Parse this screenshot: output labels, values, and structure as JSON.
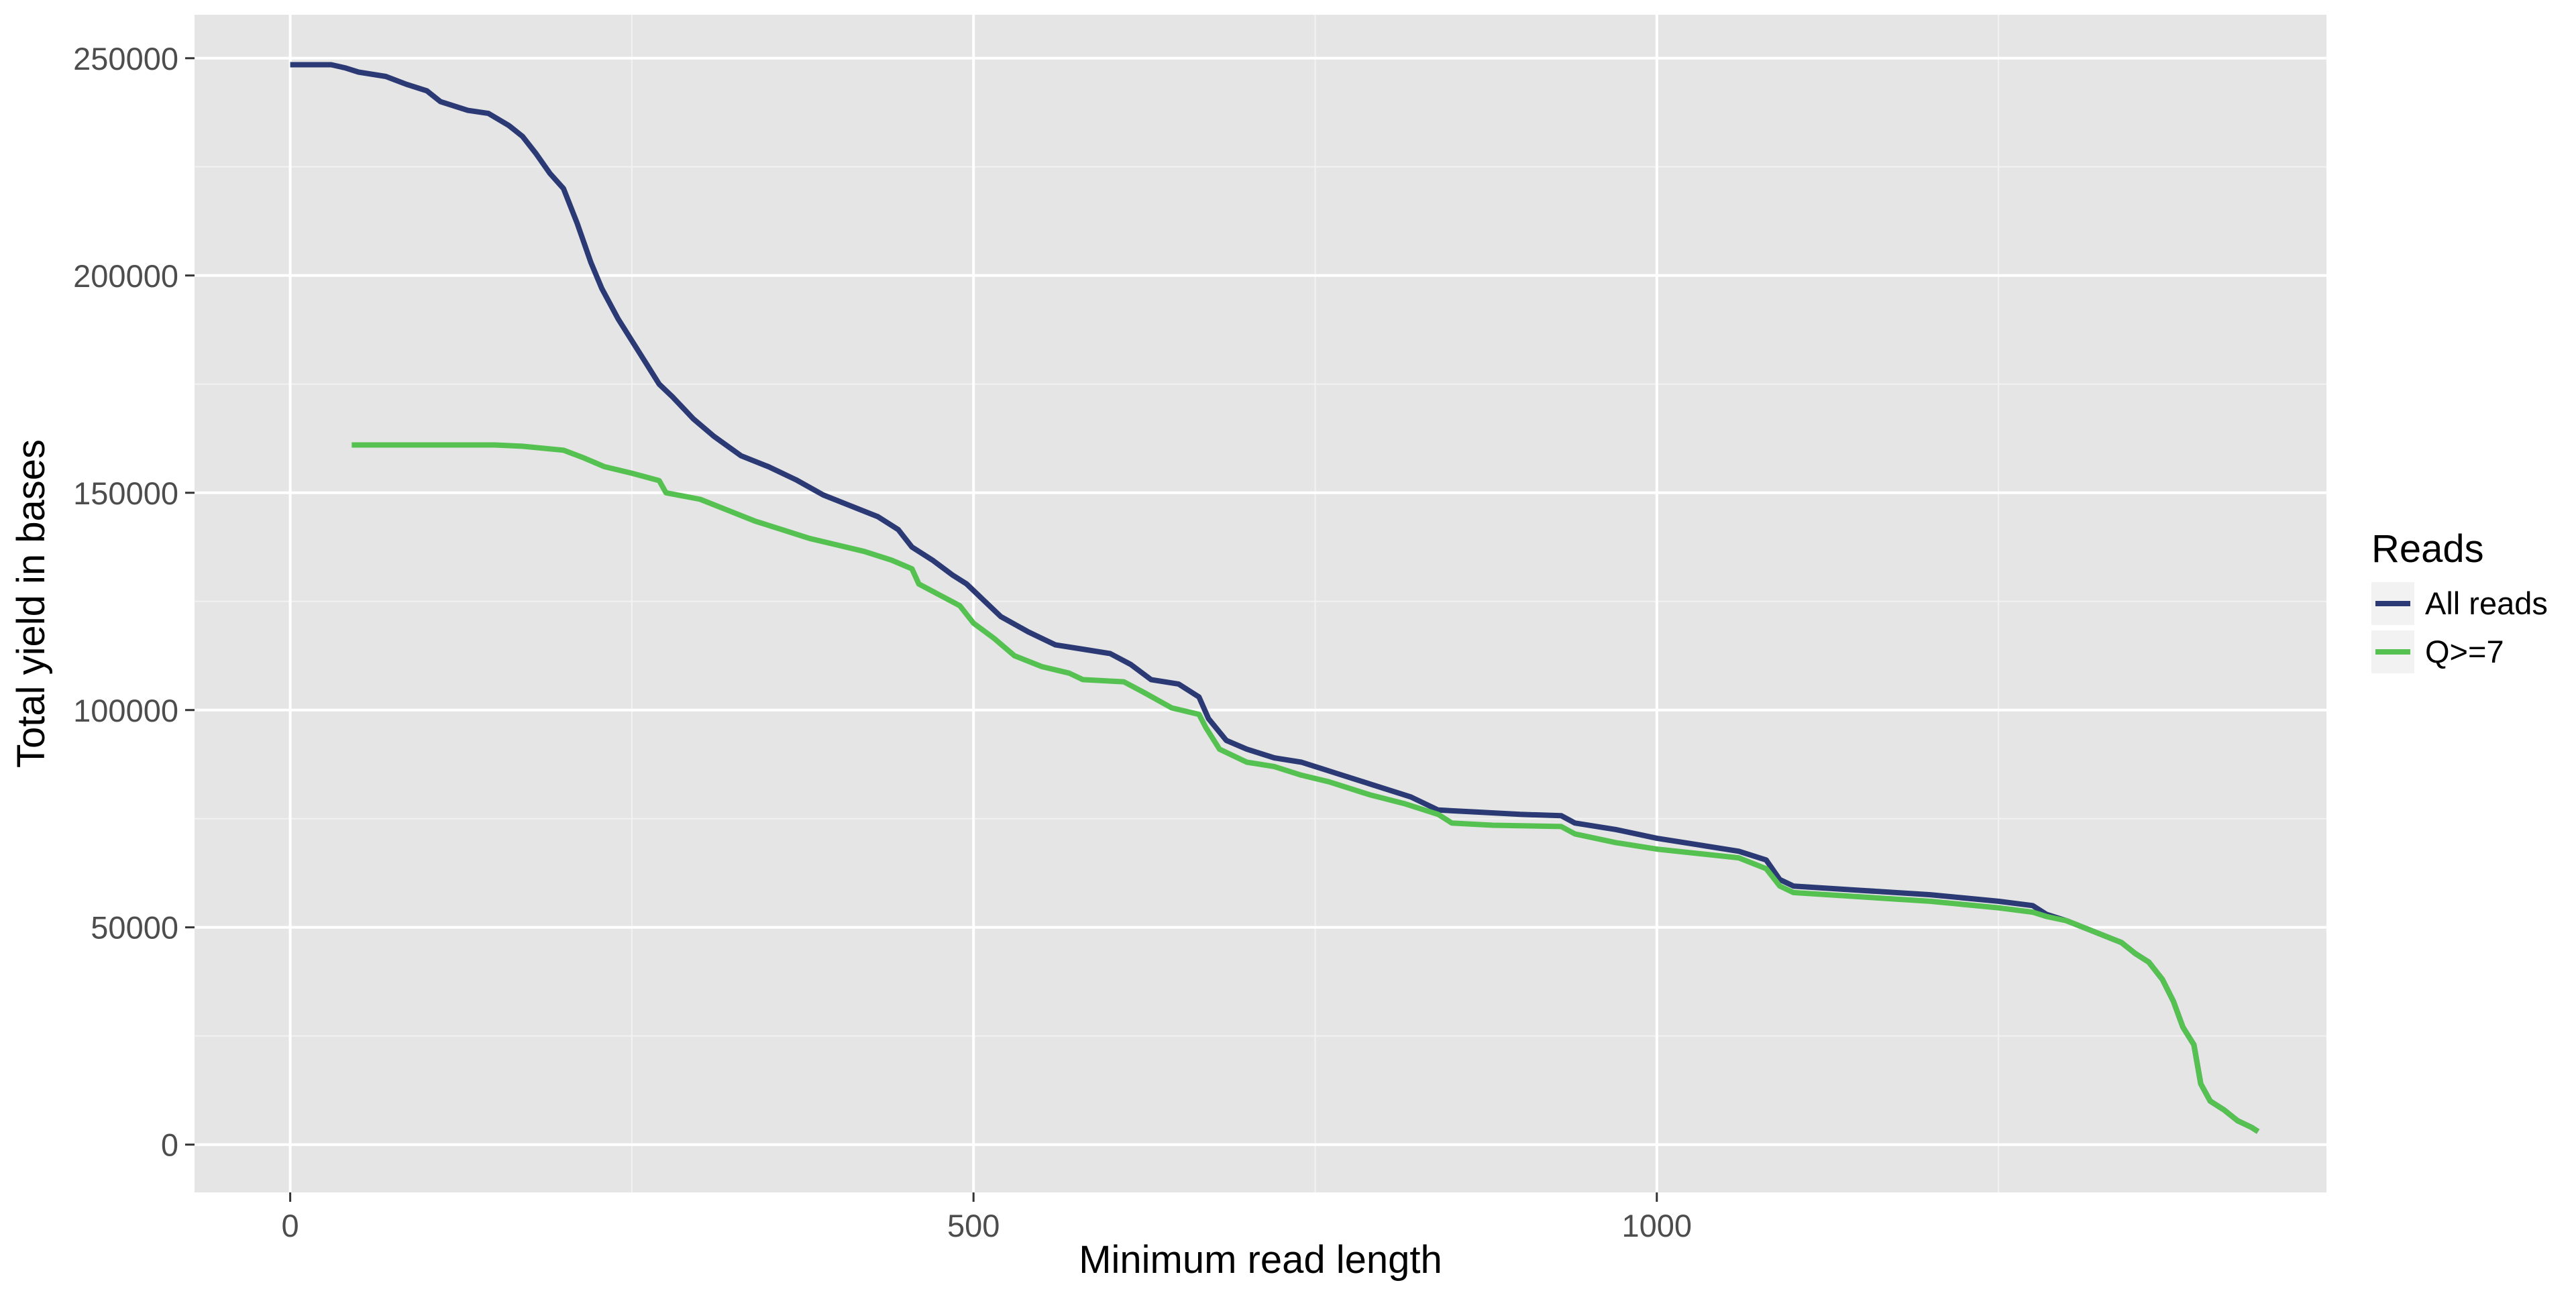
{
  "chart_data": {
    "type": "line",
    "title": "",
    "xlabel": "Minimum read length",
    "ylabel": "Total yield in bases",
    "xlim": [
      -70,
      1490
    ],
    "ylim": [
      -11000,
      260000
    ],
    "x_ticks": [
      0,
      500,
      1000
    ],
    "x_tick_labels": [
      "0",
      "500",
      "1000"
    ],
    "x_minor_ticks": [
      250,
      750,
      1250
    ],
    "y_ticks": [
      0,
      50000,
      100000,
      150000,
      200000,
      250000
    ],
    "y_tick_labels": [
      "0",
      "50000",
      "100000",
      "150000",
      "200000",
      "250000"
    ],
    "y_minor_ticks": [
      25000,
      75000,
      125000,
      175000,
      225000
    ],
    "grid": true,
    "legend": {
      "title": "Reads",
      "placement": "right"
    },
    "series": [
      {
        "name": "All reads",
        "color": "#2b3a74",
        "points": [
          [
            0,
            248500
          ],
          [
            30,
            248500
          ],
          [
            40,
            247800
          ],
          [
            50,
            246800
          ],
          [
            70,
            245800
          ],
          [
            85,
            244000
          ],
          [
            100,
            242500
          ],
          [
            110,
            240000
          ],
          [
            130,
            238000
          ],
          [
            145,
            237300
          ],
          [
            160,
            234500
          ],
          [
            170,
            232000
          ],
          [
            180,
            228000
          ],
          [
            190,
            223500
          ],
          [
            200,
            220000
          ],
          [
            210,
            212000
          ],
          [
            220,
            203000
          ],
          [
            228,
            197000
          ],
          [
            240,
            190000
          ],
          [
            250,
            185000
          ],
          [
            260,
            180000
          ],
          [
            270,
            175000
          ],
          [
            280,
            172000
          ],
          [
            295,
            167000
          ],
          [
            310,
            163000
          ],
          [
            330,
            158500
          ],
          [
            350,
            156000
          ],
          [
            370,
            153000
          ],
          [
            390,
            149500
          ],
          [
            410,
            147000
          ],
          [
            430,
            144500
          ],
          [
            445,
            141500
          ],
          [
            455,
            137500
          ],
          [
            470,
            134500
          ],
          [
            485,
            131000
          ],
          [
            495,
            129000
          ],
          [
            505,
            126000
          ],
          [
            520,
            121500
          ],
          [
            540,
            118000
          ],
          [
            560,
            115000
          ],
          [
            580,
            114000
          ],
          [
            600,
            113000
          ],
          [
            615,
            110500
          ],
          [
            630,
            107000
          ],
          [
            650,
            106000
          ],
          [
            665,
            103000
          ],
          [
            672,
            98000
          ],
          [
            685,
            93000
          ],
          [
            700,
            91000
          ],
          [
            720,
            89000
          ],
          [
            740,
            88000
          ],
          [
            760,
            86000
          ],
          [
            790,
            83000
          ],
          [
            820,
            80000
          ],
          [
            840,
            77000
          ],
          [
            870,
            76500
          ],
          [
            900,
            76000
          ],
          [
            930,
            75700
          ],
          [
            940,
            74000
          ],
          [
            970,
            72500
          ],
          [
            1000,
            70500
          ],
          [
            1030,
            69000
          ],
          [
            1060,
            67500
          ],
          [
            1080,
            65500
          ],
          [
            1090,
            61000
          ],
          [
            1100,
            59500
          ],
          [
            1150,
            58500
          ],
          [
            1200,
            57500
          ],
          [
            1250,
            56000
          ],
          [
            1275,
            55000
          ],
          [
            1285,
            53000
          ],
          [
            1300,
            51500
          ],
          [
            1320,
            49000
          ],
          [
            1340,
            46500
          ],
          [
            1350,
            44000
          ],
          [
            1360,
            42000
          ],
          [
            1370,
            38000
          ],
          [
            1378,
            33000
          ],
          [
            1385,
            27000
          ],
          [
            1393,
            23000
          ],
          [
            1398,
            14000
          ],
          [
            1405,
            10000
          ],
          [
            1415,
            8000
          ],
          [
            1425,
            5500
          ],
          [
            1435,
            4000
          ],
          [
            1440,
            3000
          ]
        ]
      },
      {
        "name": "Q>=7",
        "color": "#55c151",
        "points": [
          [
            45,
            161000
          ],
          [
            150,
            161000
          ],
          [
            170,
            160700
          ],
          [
            200,
            159800
          ],
          [
            215,
            158000
          ],
          [
            230,
            156000
          ],
          [
            250,
            154500
          ],
          [
            270,
            152800
          ],
          [
            275,
            150000
          ],
          [
            300,
            148500
          ],
          [
            320,
            146000
          ],
          [
            340,
            143500
          ],
          [
            360,
            141500
          ],
          [
            380,
            139500
          ],
          [
            400,
            138000
          ],
          [
            420,
            136500
          ],
          [
            440,
            134500
          ],
          [
            455,
            132500
          ],
          [
            460,
            129000
          ],
          [
            475,
            126500
          ],
          [
            490,
            124000
          ],
          [
            500,
            120000
          ],
          [
            515,
            116500
          ],
          [
            530,
            112500
          ],
          [
            550,
            110000
          ],
          [
            570,
            108500
          ],
          [
            580,
            107000
          ],
          [
            610,
            106500
          ],
          [
            625,
            104000
          ],
          [
            645,
            100500
          ],
          [
            665,
            99000
          ],
          [
            670,
            96000
          ],
          [
            680,
            91000
          ],
          [
            700,
            88000
          ],
          [
            720,
            87000
          ],
          [
            740,
            85000
          ],
          [
            760,
            83500
          ],
          [
            790,
            80500
          ],
          [
            815,
            78500
          ],
          [
            840,
            76000
          ],
          [
            850,
            74000
          ],
          [
            880,
            73500
          ],
          [
            930,
            73200
          ],
          [
            940,
            71500
          ],
          [
            970,
            69500
          ],
          [
            1000,
            68000
          ],
          [
            1030,
            67000
          ],
          [
            1060,
            66000
          ],
          [
            1080,
            63500
          ],
          [
            1090,
            59500
          ],
          [
            1100,
            58000
          ],
          [
            1150,
            57000
          ],
          [
            1200,
            56000
          ],
          [
            1250,
            54500
          ],
          [
            1275,
            53500
          ],
          [
            1285,
            52500
          ],
          [
            1300,
            51500
          ],
          [
            1320,
            49000
          ],
          [
            1340,
            46500
          ],
          [
            1350,
            44000
          ],
          [
            1360,
            42000
          ],
          [
            1370,
            38000
          ],
          [
            1378,
            33000
          ],
          [
            1385,
            27000
          ],
          [
            1393,
            23000
          ],
          [
            1398,
            14000
          ],
          [
            1405,
            10000
          ],
          [
            1415,
            8000
          ],
          [
            1425,
            5500
          ],
          [
            1435,
            4000
          ],
          [
            1440,
            3000
          ]
        ]
      }
    ]
  }
}
